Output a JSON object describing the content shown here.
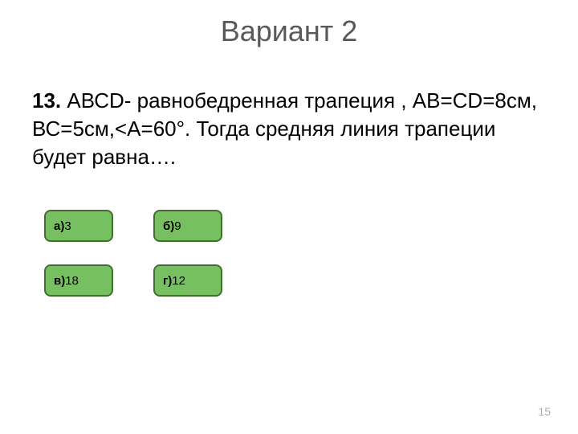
{
  "title": "Вариант 2",
  "question": {
    "number": "13.",
    "text": " АВСD- равнобедренная трапеция , АВ=СD=8см, ВС=5см,<А=60°. Тогда средняя линия трапеции будет равна…."
  },
  "answers": {
    "a": {
      "label": "а)",
      "value": " 3"
    },
    "b": {
      "label": "б)",
      "value": " 9"
    },
    "v": {
      "label": "в)",
      "value": " 18"
    },
    "g": {
      "label": "г)",
      "value": " 12"
    }
  },
  "page_number": "15",
  "colors": {
    "answer_bg": "#77c061",
    "answer_border": "#416f30",
    "title_color": "#595959",
    "text_color": "#000000",
    "page_num_color": "#b0aeb0",
    "background": "#ffffff"
  }
}
